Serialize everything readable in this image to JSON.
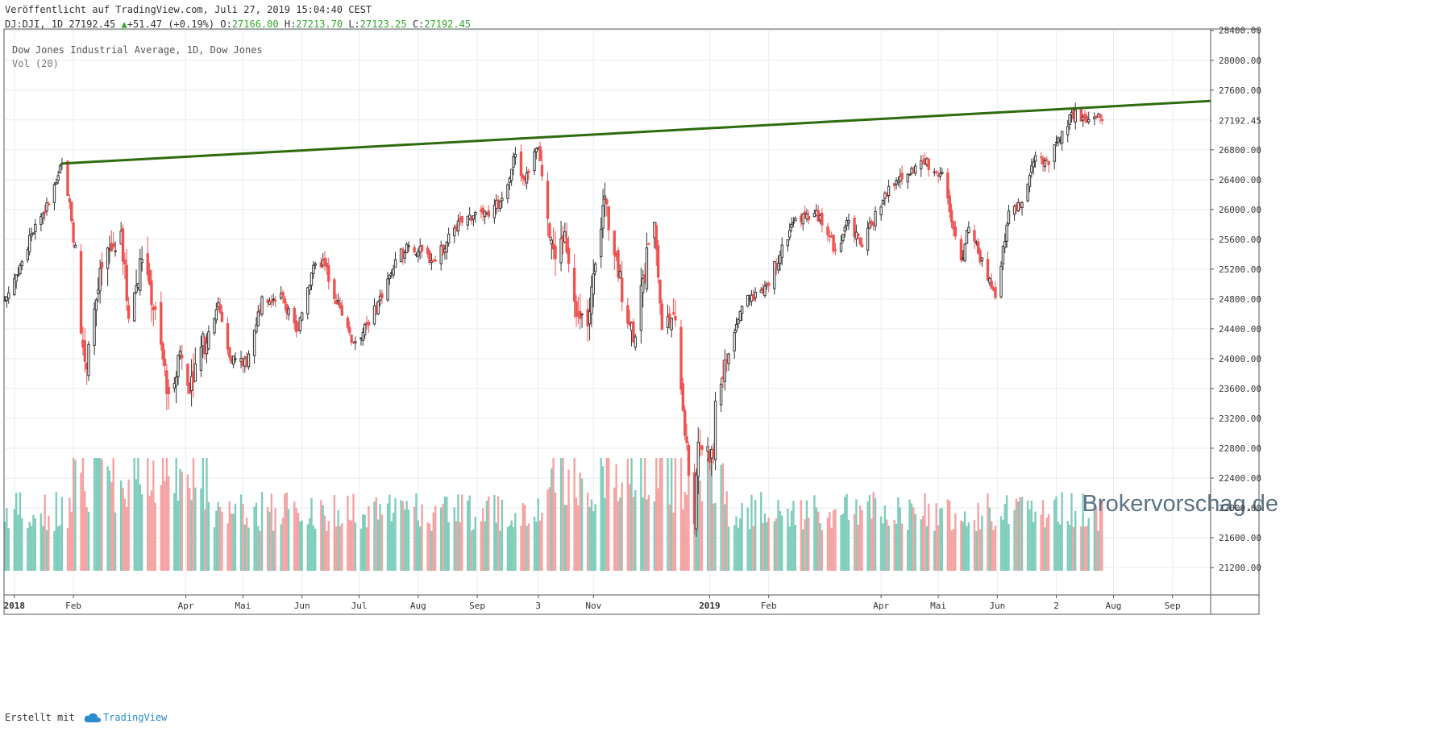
{
  "header": {
    "published": "Veröffentlicht auf TradingView.com, Juli 27, 2019 15:04:40 CEST",
    "symbol": "DJ:DJI, 1D",
    "last": "27192.45",
    "change_arrow": "▲",
    "change": "+51.47 (+0.19%)",
    "o_label": "O:",
    "o_value": "27166.00",
    "h_label": "H:",
    "h_value": "27213.70",
    "l_label": "L:",
    "l_value": "27123.25",
    "c_label": "C:",
    "c_value": "27192.45"
  },
  "legend": {
    "line1": "Dow Jones Industrial Average, 1D, Dow Jones",
    "line2": "Vol (20)"
  },
  "watermark": "Brokervorschag.de",
  "footer": {
    "created_with": "Erstellt mit",
    "brand": "TradingView"
  },
  "colors": {
    "up": "#333333",
    "down": "#ef5350",
    "vol_up": "#7fcdbb",
    "vol_down": "#f4a3a3",
    "trendline": "#2e6b0e",
    "grid": "#e6eef3",
    "last_tag": "#ffffff"
  },
  "chart_data": {
    "type": "candlestick",
    "title": "Dow Jones Industrial Average, 1D, Dow Jones",
    "y_axis_ticks": [
      "21200.00",
      "21600.00",
      "22000.00",
      "22400.00",
      "22800.00",
      "23200.00",
      "23600.00",
      "24000.00",
      "24400.00",
      "24800.00",
      "25200.00",
      "25600.00",
      "26000.00",
      "26400.00",
      "26800.00",
      "27192.45",
      "27600.00",
      "28000.00",
      "28400.00"
    ],
    "ylim": [
      21000,
      28450
    ],
    "last_price_label": "27192.45",
    "x_axis_labels": [
      {
        "label": "2018",
        "bold": true,
        "date": "2018-01-01"
      },
      {
        "label": "Feb",
        "date": "2018-02-01"
      },
      {
        "label": "Apr",
        "date": "2018-04-01"
      },
      {
        "label": "Mai",
        "date": "2018-05-01"
      },
      {
        "label": "Jun",
        "date": "2018-06-01"
      },
      {
        "label": "Jul",
        "date": "2018-07-01"
      },
      {
        "label": "Aug",
        "date": "2018-08-01"
      },
      {
        "label": "Sep",
        "date": "2018-09-01"
      },
      {
        "label": "3",
        "date": "2018-10-03"
      },
      {
        "label": "Nov",
        "date": "2018-11-01"
      },
      {
        "label": "2019",
        "bold": true,
        "date": "2019-01-01"
      },
      {
        "label": "Feb",
        "date": "2019-02-01"
      },
      {
        "label": "Apr",
        "date": "2019-04-01"
      },
      {
        "label": "Mai",
        "date": "2019-05-01"
      },
      {
        "label": "Jun",
        "date": "2019-06-01"
      },
      {
        "label": "2",
        "date": "2019-07-02"
      },
      {
        "label": "Aug",
        "date": "2019-08-01"
      },
      {
        "label": "Sep",
        "date": "2019-09-01"
      }
    ],
    "x_range": [
      "2017-12-27",
      "2019-09-21"
    ],
    "close_anchors": [
      [
        "2017-12-27",
        24780
      ],
      [
        "2018-01-05",
        25300
      ],
      [
        "2018-01-12",
        25800
      ],
      [
        "2018-01-19",
        26070
      ],
      [
        "2018-01-26",
        26616
      ],
      [
        "2018-01-30",
        26100
      ],
      [
        "2018-02-02",
        25520
      ],
      [
        "2018-02-05",
        24345
      ],
      [
        "2018-02-08",
        23860
      ],
      [
        "2018-02-09",
        24190
      ],
      [
        "2018-02-16",
        25220
      ],
      [
        "2018-02-26",
        25710
      ],
      [
        "2018-03-02",
        24540
      ],
      [
        "2018-03-09",
        25330
      ],
      [
        "2018-03-13",
        25000
      ],
      [
        "2018-03-23",
        23530
      ],
      [
        "2018-03-29",
        24100
      ],
      [
        "2018-04-02",
        23640
      ],
      [
        "2018-04-06",
        23930
      ],
      [
        "2018-04-13",
        24360
      ],
      [
        "2018-04-18",
        24750
      ],
      [
        "2018-04-24",
        24020
      ],
      [
        "2018-05-03",
        23930
      ],
      [
        "2018-05-11",
        24830
      ],
      [
        "2018-05-22",
        24830
      ],
      [
        "2018-05-29",
        24360
      ],
      [
        "2018-06-06",
        25150
      ],
      [
        "2018-06-12",
        25320
      ],
      [
        "2018-06-22",
        24580
      ],
      [
        "2018-06-28",
        24220
      ],
      [
        "2018-07-06",
        24450
      ],
      [
        "2018-07-17",
        25120
      ],
      [
        "2018-07-26",
        25530
      ],
      [
        "2018-08-10",
        25310
      ],
      [
        "2018-08-20",
        25750
      ],
      [
        "2018-08-31",
        25960
      ],
      [
        "2018-09-07",
        25910
      ],
      [
        "2018-09-14",
        26150
      ],
      [
        "2018-09-21",
        26740
      ],
      [
        "2018-09-26",
        26390
      ],
      [
        "2018-10-03",
        26828
      ],
      [
        "2018-10-05",
        26450
      ],
      [
        "2018-10-10",
        25590
      ],
      [
        "2018-10-12",
        25340
      ],
      [
        "2018-10-17",
        25700
      ],
      [
        "2018-10-24",
        24580
      ],
      [
        "2018-10-29",
        24440
      ],
      [
        "2018-11-02",
        25270
      ],
      [
        "2018-11-07",
        26180
      ],
      [
        "2018-11-12",
        25390
      ],
      [
        "2018-11-20",
        24460
      ],
      [
        "2018-11-23",
        24290
      ],
      [
        "2018-11-30",
        25540
      ],
      [
        "2018-12-03",
        25830
      ],
      [
        "2018-12-07",
        24390
      ],
      [
        "2018-12-13",
        24600
      ],
      [
        "2018-12-17",
        23590
      ],
      [
        "2018-12-21",
        22440
      ],
      [
        "2018-12-24",
        21790
      ],
      [
        "2018-12-26",
        22880
      ],
      [
        "2019-01-03",
        22690
      ],
      [
        "2019-01-04",
        23430
      ],
      [
        "2019-01-18",
        24700
      ],
      [
        "2019-01-31",
        24999
      ],
      [
        "2019-02-15",
        25880
      ],
      [
        "2019-02-28",
        25920
      ],
      [
        "2019-03-08",
        25450
      ],
      [
        "2019-03-15",
        25850
      ],
      [
        "2019-03-22",
        25500
      ],
      [
        "2019-04-03",
        26220
      ],
      [
        "2019-04-12",
        26410
      ],
      [
        "2019-04-23",
        26650
      ],
      [
        "2019-05-03",
        26500
      ],
      [
        "2019-05-07",
        25970
      ],
      [
        "2019-05-13",
        25320
      ],
      [
        "2019-05-17",
        25760
      ],
      [
        "2019-05-31",
        24820
      ],
      [
        "2019-06-07",
        25980
      ],
      [
        "2019-06-14",
        26090
      ],
      [
        "2019-06-21",
        26720
      ],
      [
        "2019-06-28",
        26600
      ],
      [
        "2019-07-03",
        26960
      ],
      [
        "2019-07-12",
        27330
      ],
      [
        "2019-07-17",
        27220
      ],
      [
        "2019-07-26",
        27192
      ]
    ],
    "trendline": {
      "from": {
        "date": "2018-01-26",
        "value": 26616
      },
      "to": {
        "date": "2019-09-21",
        "value": 27455
      }
    },
    "volume_axis": {
      "max": 1.0
    }
  }
}
